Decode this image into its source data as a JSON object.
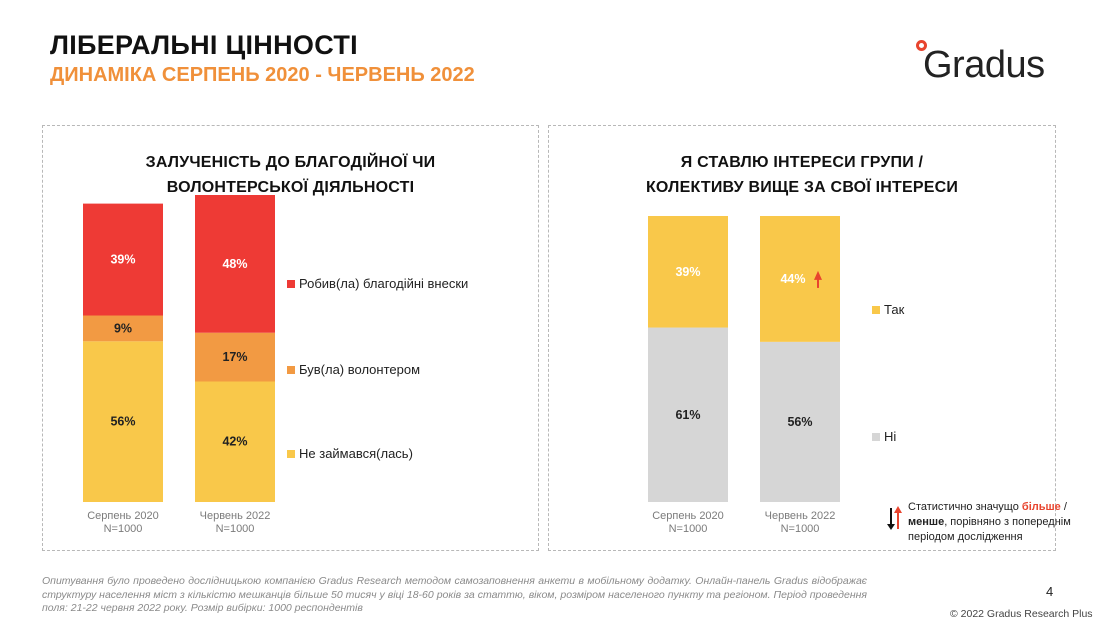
{
  "header": {
    "title": "ЛІБЕРАЛЬНІ ЦІННОСТІ",
    "subtitle": "ДИНАМІКА СЕРПЕНЬ 2020 - ЧЕРВЕНЬ 2022"
  },
  "logo": {
    "text": "Gradus"
  },
  "colors": {
    "red": "#ee3a35",
    "orange": "#f29a43",
    "yellow": "#f9c84a",
    "gray": "#d6d6d6",
    "accent": "#f0903a"
  },
  "chart_data": [
    {
      "type": "bar",
      "stacked": true,
      "title_lines": [
        "ЗАЛУЧЕНІСТЬ ДО БЛАГОДІЙНОЇ ЧИ",
        "ВОЛОНТЕРСЬКОЇ ДІЯЛЬНОСТІ"
      ],
      "categories": [
        {
          "label": "Серпень 2020",
          "n": "N=1000"
        },
        {
          "label": "Червень 2022",
          "n": "N=1000"
        }
      ],
      "series": [
        {
          "name": "Не займався(лась)",
          "values": [
            56,
            42
          ],
          "labels": [
            "56%",
            "42%"
          ],
          "color": "#f9c84a"
        },
        {
          "name": "Був(ла) волонтером",
          "values": [
            9,
            17
          ],
          "labels": [
            "9%",
            "17%"
          ],
          "color": "#f29a43"
        },
        {
          "name": "Робив(ла) благодійні внески",
          "values": [
            39,
            48
          ],
          "labels": [
            "39%",
            "48%"
          ],
          "color": "#ee3a35"
        }
      ],
      "ylim": [
        0,
        107
      ]
    },
    {
      "type": "bar",
      "stacked": true,
      "title_lines": [
        "Я СТАВЛЮ ІНТЕРЕСИ ГРУПИ /",
        "КОЛЕКТИВУ ВИЩЕ ЗА СВОЇ ІНТЕРЕСИ"
      ],
      "categories": [
        {
          "label": "Серпень 2020",
          "n": "N=1000"
        },
        {
          "label": "Червень 2022",
          "n": "N=1000"
        }
      ],
      "series": [
        {
          "name": "Ні",
          "values": [
            61,
            56
          ],
          "labels": [
            "61%",
            "56%"
          ],
          "color": "#d6d6d6"
        },
        {
          "name": "Так",
          "values": [
            39,
            44
          ],
          "labels": [
            "39%",
            "44%"
          ],
          "color": "#f9c84a",
          "significant_increase": [
            false,
            true
          ]
        }
      ],
      "ylim": [
        0,
        100
      ]
    }
  ],
  "legend_left": [
    "Робив(ла) благодійні внески",
    "Був(ла) волонтером",
    "Не займався(лась)"
  ],
  "legend_right": [
    "Так",
    "Ні"
  ],
  "significance_note": {
    "prefix": "Статистично значущо ",
    "more": "більше",
    "slash": " /",
    "less": "менше",
    "suffix": ", порівняно з попереднім періодом дослідження"
  },
  "footnote": "Опитування було проведено дослідницькою компанією Gradus Research методом самозаповнення анкети в мобільному додатку. Онлайн-панель Gradus відображає структуру населення міст з кількістю мешканців більше 50 тисяч у віці 18-60 років за статтю, віком, розміром населеного пункту та регіоном. Період проведення поля: 21-22 червня 2022 року. Розмір вибірки: 1000 респондентів",
  "page_number": "4",
  "copyright": "© 2022 Gradus Research Plus"
}
